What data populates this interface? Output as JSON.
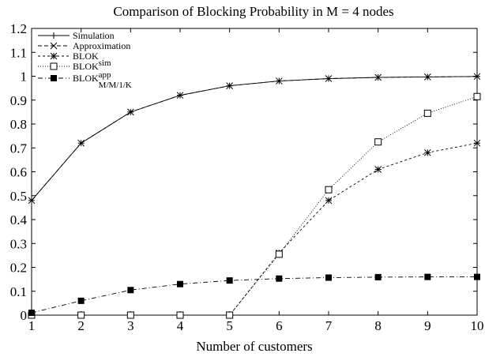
{
  "chart_data": {
    "type": "line",
    "title": "Comparison of Blocking Probability in M = 4 nodes",
    "xlabel": "Number of customers",
    "ylabel": "",
    "xlim": [
      1,
      10
    ],
    "ylim": [
      0,
      1.2
    ],
    "x": [
      1,
      2,
      3,
      4,
      5,
      6,
      7,
      8,
      9,
      10
    ],
    "x_ticks": [
      "1",
      "2",
      "3",
      "4",
      "5",
      "6",
      "7",
      "8",
      "9",
      "10"
    ],
    "y_ticks": [
      "0",
      "0.1",
      "0.2",
      "0.3",
      "0.4",
      "0.5",
      "0.6",
      "0.7",
      "0.8",
      "0.9",
      "1",
      "1.1",
      "1.2"
    ],
    "grid": false,
    "legend_position": "top-left",
    "series": [
      {
        "name": "Simulation",
        "marker": "plus",
        "dash": "solid",
        "values": [
          0.48,
          0.72,
          0.85,
          0.92,
          0.96,
          0.98,
          0.99,
          0.995,
          0.997,
          0.999
        ]
      },
      {
        "name": "Approximation",
        "marker": "x",
        "dash": "dashed",
        "values": [
          0.48,
          0.72,
          0.85,
          0.92,
          0.96,
          0.98,
          0.99,
          0.995,
          0.997,
          0.999
        ]
      },
      {
        "name": "BLOK",
        "marker": "asterisk",
        "dash": "short-dashed",
        "values": [
          0,
          0,
          0,
          0,
          0,
          0.26,
          0.48,
          0.61,
          0.68,
          0.72
        ]
      },
      {
        "name": "BLOK",
        "name_sup": "sim",
        "marker": "open-square",
        "dash": "dotted",
        "values": [
          0,
          0,
          0,
          0,
          0,
          0.255,
          0.525,
          0.725,
          0.845,
          0.915
        ]
      },
      {
        "name": "BLOK",
        "name_sup": "app",
        "name_sub": "M/M/1/K",
        "marker": "filled-square",
        "dash": "dash-dot",
        "values": [
          0.01,
          0.06,
          0.105,
          0.13,
          0.145,
          0.153,
          0.157,
          0.159,
          0.16,
          0.16
        ]
      }
    ]
  }
}
